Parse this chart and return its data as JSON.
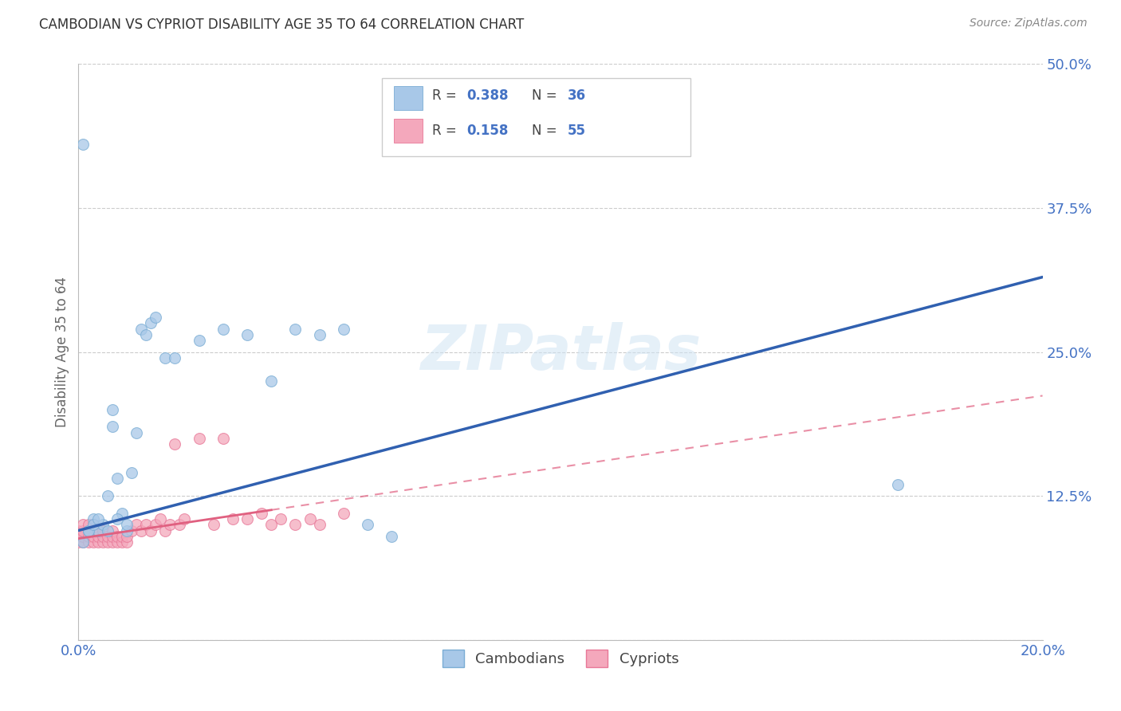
{
  "title": "CAMBODIAN VS CYPRIOT DISABILITY AGE 35 TO 64 CORRELATION CHART",
  "source": "Source: ZipAtlas.com",
  "ylabel": "Disability Age 35 to 64",
  "xlim": [
    0.0,
    0.2
  ],
  "ylim": [
    0.0,
    0.5
  ],
  "xticks": [
    0.0,
    0.05,
    0.1,
    0.15,
    0.2
  ],
  "xtick_labels": [
    "0.0%",
    "",
    "",
    "",
    "20.0%"
  ],
  "yticks": [
    0.0,
    0.125,
    0.25,
    0.375,
    0.5
  ],
  "ytick_labels": [
    "",
    "12.5%",
    "25.0%",
    "37.5%",
    "50.0%"
  ],
  "cambodian_color": "#a8c8e8",
  "cypriot_color": "#f4a8bc",
  "cambodian_edge": "#7aadd4",
  "cypriot_edge": "#e87898",
  "blue_line_color": "#3060b0",
  "pink_line_color": "#e06080",
  "grid_color": "#cccccc",
  "background_color": "#ffffff",
  "title_color": "#333333",
  "tick_color": "#4472c4",
  "marker_size": 100,
  "cambodian_x": [
    0.001,
    0.001,
    0.002,
    0.003,
    0.004,
    0.005,
    0.006,
    0.007,
    0.007,
    0.008,
    0.009,
    0.01,
    0.011,
    0.012,
    0.013,
    0.014,
    0.015,
    0.016,
    0.018,
    0.02,
    0.025,
    0.03,
    0.035,
    0.04,
    0.045,
    0.05,
    0.055,
    0.06,
    0.065,
    0.17,
    0.002,
    0.003,
    0.004,
    0.006,
    0.008,
    0.01
  ],
  "cambodian_y": [
    0.085,
    0.43,
    0.095,
    0.105,
    0.095,
    0.1,
    0.125,
    0.2,
    0.185,
    0.14,
    0.11,
    0.095,
    0.145,
    0.18,
    0.27,
    0.265,
    0.275,
    0.28,
    0.245,
    0.245,
    0.26,
    0.27,
    0.265,
    0.225,
    0.27,
    0.265,
    0.27,
    0.1,
    0.09,
    0.135,
    0.095,
    0.1,
    0.105,
    0.095,
    0.105,
    0.1
  ],
  "cypriot_x": [
    0.0,
    0.0,
    0.0,
    0.001,
    0.001,
    0.001,
    0.001,
    0.002,
    0.002,
    0.002,
    0.002,
    0.003,
    0.003,
    0.003,
    0.004,
    0.004,
    0.004,
    0.005,
    0.005,
    0.005,
    0.006,
    0.006,
    0.007,
    0.007,
    0.007,
    0.008,
    0.008,
    0.009,
    0.009,
    0.01,
    0.01,
    0.011,
    0.012,
    0.013,
    0.014,
    0.015,
    0.016,
    0.017,
    0.018,
    0.019,
    0.02,
    0.021,
    0.022,
    0.025,
    0.028,
    0.03,
    0.032,
    0.035,
    0.038,
    0.04,
    0.042,
    0.045,
    0.048,
    0.05,
    0.055
  ],
  "cypriot_y": [
    0.085,
    0.09,
    0.095,
    0.085,
    0.09,
    0.095,
    0.1,
    0.085,
    0.09,
    0.095,
    0.1,
    0.085,
    0.09,
    0.1,
    0.085,
    0.09,
    0.095,
    0.085,
    0.09,
    0.095,
    0.085,
    0.09,
    0.085,
    0.09,
    0.095,
    0.085,
    0.09,
    0.085,
    0.09,
    0.085,
    0.09,
    0.095,
    0.1,
    0.095,
    0.1,
    0.095,
    0.1,
    0.105,
    0.095,
    0.1,
    0.17,
    0.1,
    0.105,
    0.175,
    0.1,
    0.175,
    0.105,
    0.105,
    0.11,
    0.1,
    0.105,
    0.1,
    0.105,
    0.1,
    0.11
  ],
  "blue_intercept": 0.095,
  "blue_slope": 1.1,
  "pink_intercept": 0.088,
  "pink_slope": 0.62,
  "watermark": "ZIPatlas"
}
